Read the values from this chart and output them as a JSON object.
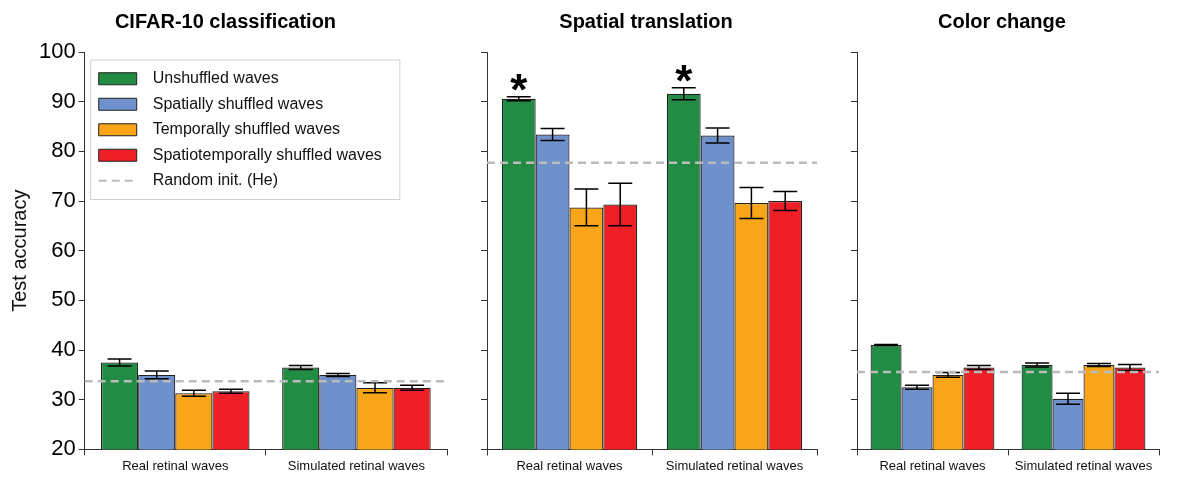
{
  "chart_data": [
    {
      "type": "bar",
      "title": "CIFAR-10 classification",
      "ylabel": "Test accuracy",
      "categories": [
        "Real retinal waves",
        "Simulated retinal waves"
      ],
      "series": [
        {
          "name": "Unshuffled waves",
          "color": "#228b44",
          "values": [
            37.5,
            36.5
          ],
          "errors": [
            0.7,
            0.4
          ]
        },
        {
          "name": "Spatially shuffled waves",
          "color": "#6f91cb",
          "values": [
            35.0,
            35.0
          ],
          "errors": [
            0.8,
            0.3
          ]
        },
        {
          "name": "Temporally shuffled waves",
          "color": "#f9a51a",
          "values": [
            31.3,
            32.4
          ],
          "errors": [
            0.6,
            1.0
          ]
        },
        {
          "name": "Spatiotemporally shuffled waves",
          "color": "#ee1f26",
          "values": [
            31.7,
            32.4
          ],
          "errors": [
            0.4,
            0.5
          ]
        }
      ],
      "ref_lines": [
        {
          "axis": "y",
          "value": 33.7,
          "label": "Random init. (He)",
          "color": "#bbbbbb",
          "line_style": "dashed"
        }
      ],
      "ylim": [
        20,
        100
      ],
      "yticks": [
        20,
        30,
        40,
        50,
        60,
        70,
        80,
        90,
        100
      ],
      "grid": false,
      "legend": "top left"
    },
    {
      "type": "bar",
      "title": "Spatial translation",
      "categories": [
        "Real retinal waves",
        "Simulated retinal waves"
      ],
      "series": [
        {
          "color": "#228b44",
          "values": [
            90.6,
            91.6
          ],
          "errors": [
            0.4,
            1.2
          ]
        },
        {
          "color": "#6f91cb",
          "values": [
            83.4,
            83.2
          ],
          "errors": [
            1.2,
            1.5
          ]
        },
        {
          "color": "#f9a51a",
          "values": [
            68.7,
            69.6
          ],
          "errors": [
            3.7,
            3.1
          ]
        },
        {
          "color": "#ee1f26",
          "values": [
            69.3,
            70.0
          ],
          "errors": [
            4.3,
            1.9
          ]
        }
      ],
      "ref_lines": [
        {
          "axis": "y",
          "value": 77.7,
          "color": "#bbbbbb",
          "line_style": "dashed"
        }
      ],
      "annotations": [
        "*",
        "*"
      ],
      "ylim": [
        20,
        100
      ],
      "yticks": [
        20,
        30,
        40,
        50,
        60,
        70,
        80,
        90,
        100
      ],
      "grid": false,
      "tick_labels": "x"
    },
    {
      "type": "bar",
      "title": "Color change",
      "categories": [
        "Real retinal waves",
        "Simulated retinal waves"
      ],
      "series": [
        {
          "color": "#228b44",
          "values": [
            41.0,
            37.0
          ],
          "errors": [
            0.1,
            0.4
          ]
        },
        {
          "color": "#6f91cb",
          "values": [
            32.5,
            30.2
          ],
          "errors": [
            0.4,
            1.1
          ]
        },
        {
          "color": "#f9a51a",
          "values": [
            35.0,
            37.0
          ],
          "errors": [
            0.5,
            0.3
          ]
        },
        {
          "color": "#ee1f26",
          "values": [
            36.5,
            36.5
          ],
          "errors": [
            0.4,
            0.6
          ]
        }
      ],
      "ref_lines": [
        {
          "axis": "y",
          "value": 35.6,
          "color": "#bbbbbb",
          "line_style": "dashed"
        }
      ],
      "ylim": [
        20,
        100
      ],
      "yticks": [
        20,
        30,
        40,
        50,
        60,
        70,
        80,
        90,
        100
      ],
      "grid": false,
      "tick_labels": "x"
    }
  ]
}
